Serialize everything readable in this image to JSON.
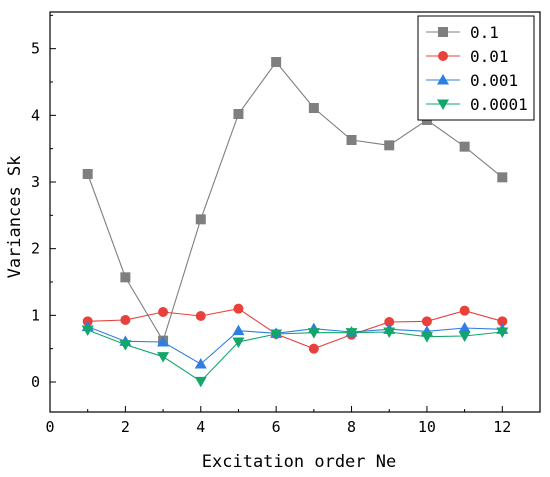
{
  "chart_data": {
    "type": "line",
    "title": "",
    "xlabel": "Excitation order Ne",
    "ylabel": "Variances Sk",
    "xlim": [
      0,
      13
    ],
    "ylim": [
      -0.45,
      5.55
    ],
    "x_ticks": [
      0,
      2,
      4,
      6,
      8,
      10,
      12
    ],
    "y_ticks": [
      0,
      1,
      2,
      3,
      4,
      5
    ],
    "grid": false,
    "legend_position": "top-right",
    "x": [
      1,
      2,
      3,
      4,
      5,
      6,
      7,
      8,
      9,
      10,
      11,
      12
    ],
    "series": [
      {
        "name": "0.1",
        "color": "#7f7f7f",
        "marker": "square",
        "values": [
          3.12,
          1.57,
          0.62,
          2.44,
          4.02,
          4.8,
          4.11,
          3.63,
          3.55,
          3.93,
          3.53,
          3.07
        ]
      },
      {
        "name": "0.01",
        "color": "#e8413b",
        "marker": "circle",
        "values": [
          0.91,
          0.93,
          1.05,
          0.99,
          1.1,
          0.72,
          0.5,
          0.71,
          0.9,
          0.91,
          1.07,
          0.91
        ]
      },
      {
        "name": "0.001",
        "color": "#2e7fe0",
        "marker": "triangle-up",
        "values": [
          0.83,
          0.61,
          0.6,
          0.27,
          0.77,
          0.73,
          0.8,
          0.75,
          0.79,
          0.76,
          0.81,
          0.79
        ]
      },
      {
        "name": "0.0001",
        "color": "#13a66a",
        "marker": "triangle-down",
        "values": [
          0.78,
          0.56,
          0.38,
          0.01,
          0.6,
          0.72,
          0.74,
          0.74,
          0.75,
          0.68,
          0.69,
          0.75
        ]
      }
    ]
  }
}
